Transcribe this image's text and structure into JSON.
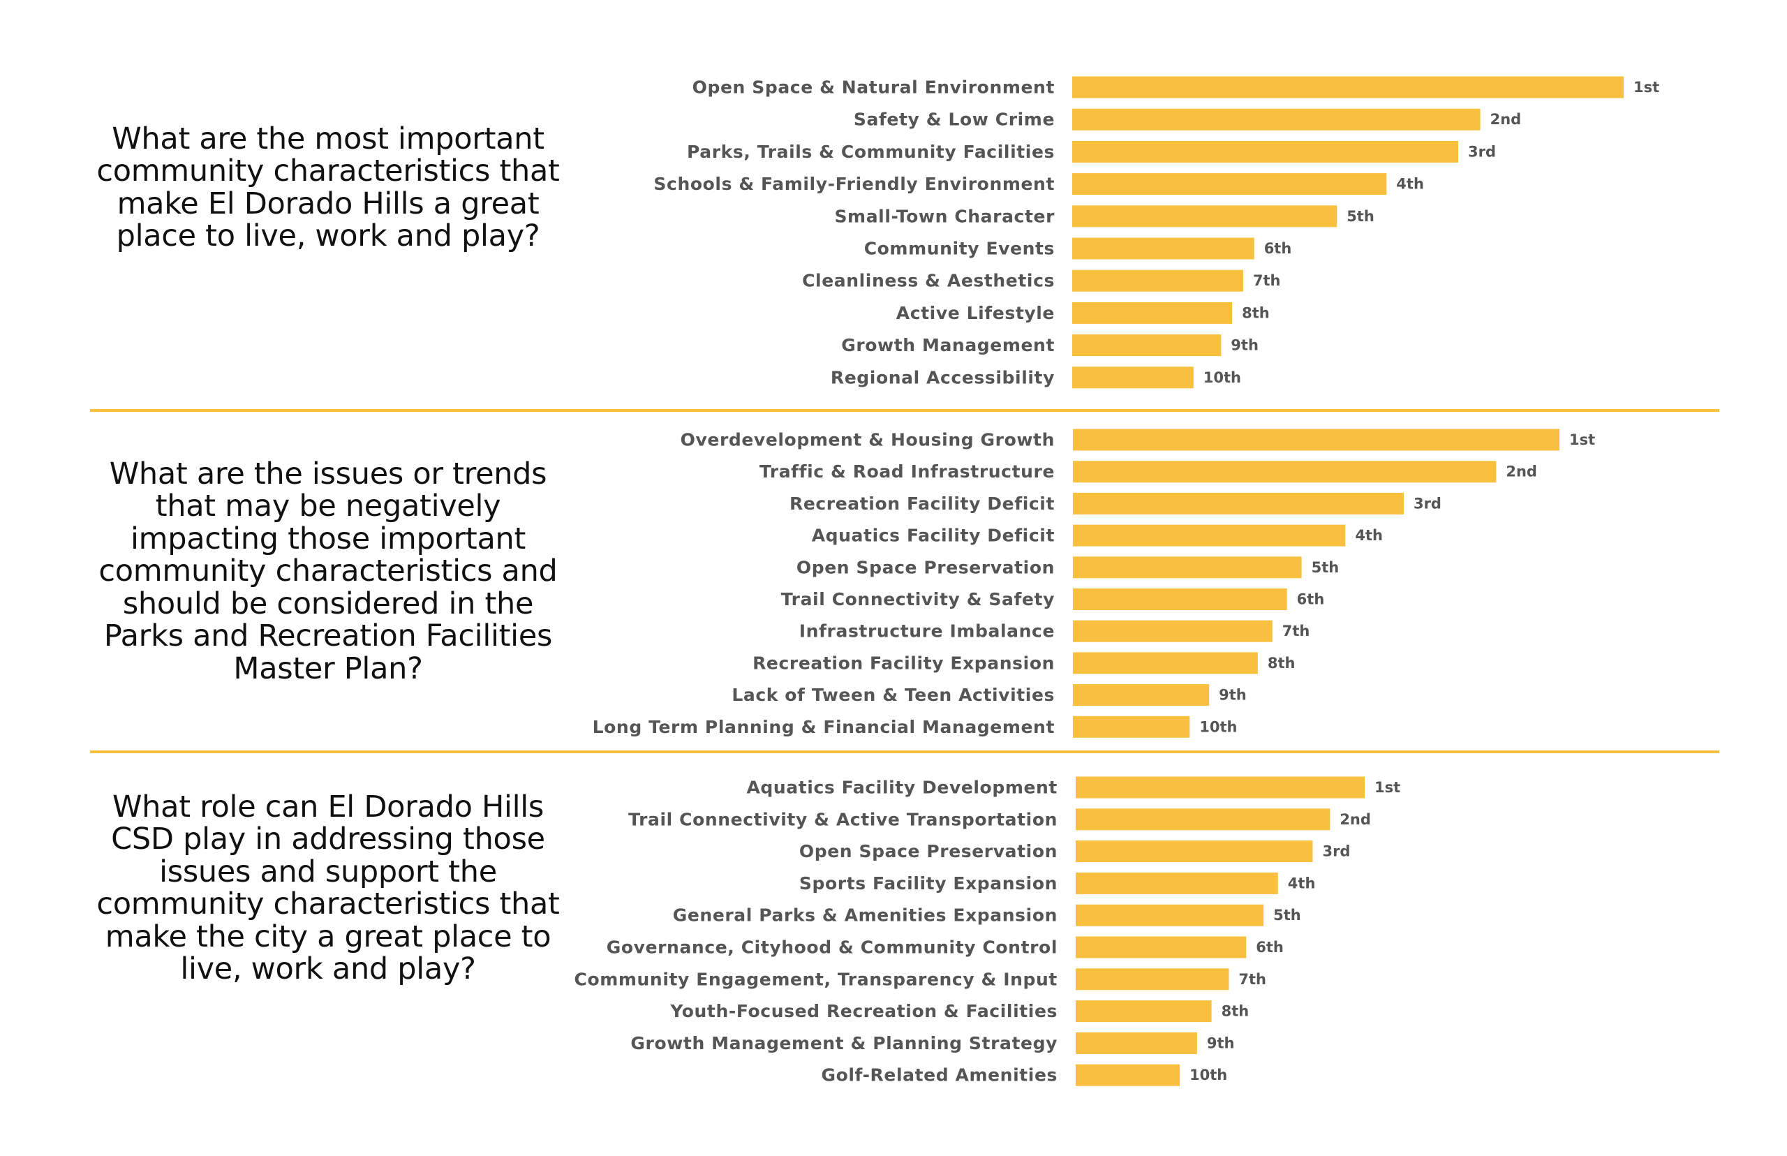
{
  "colors": {
    "bar": "#F8C03E",
    "divider": "#F8C03E",
    "category_text": "#555555",
    "rank_text": "#555555",
    "question_text": "#111111"
  },
  "chart_data": [
    {
      "type": "bar",
      "orientation": "horizontal",
      "question": "What are the most important community characteristics that make El Dorado Hills a great place to live, work and play?",
      "categories": [
        "Open Space & Natural Environment",
        "Safety & Low Crime",
        "Parks, Trails & Community Facilities",
        "Schools & Family-Friendly Environment",
        "Small-Town Character",
        "Community Events",
        "Cleanliness & Aesthetics",
        "Active Lifestyle",
        "Growth Management",
        "Regional Accessibility"
      ],
      "values": [
        100,
        74,
        70,
        57,
        48,
        33,
        31,
        29,
        27,
        22
      ],
      "data_labels": [
        "1st",
        "2nd",
        "3rd",
        "4th",
        "5th",
        "6th",
        "7th",
        "8th",
        "9th",
        "10th"
      ],
      "axis_visible": false,
      "grid": false
    },
    {
      "type": "bar",
      "orientation": "horizontal",
      "question": "What are the issues or trends that may be negatively impacting those important community characteristics and should be considered in the Parks and Recreation Facilities Master Plan?",
      "categories": [
        "Overdevelopment & Housing Growth",
        "Traffic & Road Infrastructure",
        "Recreation Facility Deficit",
        "Aquatics Facility Deficit",
        "Open Space Preservation",
        "Trail Connectivity & Safety",
        "Infrastructure Imbalance",
        "Recreation Facility Expansion",
        "Lack of Tween & Teen Activities",
        "Long Term Planning & Financial Management"
      ],
      "values": [
        100,
        87,
        68,
        56,
        47,
        44,
        41,
        38,
        28,
        24
      ],
      "data_labels": [
        "1st",
        "2nd",
        "3rd",
        "4th",
        "5th",
        "6th",
        "7th",
        "8th",
        "9th",
        "10th"
      ],
      "axis_visible": false,
      "grid": false
    },
    {
      "type": "bar",
      "orientation": "horizontal",
      "question": "What role can El Dorado Hills CSD play in addressing those issues and support the community characteristics that make the city a great place to live, work and play?",
      "categories": [
        "Aquatics Facility Development",
        "Trail Connectivity & Active Transportation",
        "Open Space Preservation",
        "Sports Facility Expansion",
        "General Parks & Amenities Expansion",
        "Governance, Cityhood & Community Control",
        "Community Engagement, Transparency & Input",
        "Youth-Focused Recreation & Facilities",
        "Growth Management & Planning Strategy",
        "Golf-Related Amenities"
      ],
      "values": [
        100,
        88,
        82,
        70,
        65,
        59,
        53,
        47,
        42,
        36
      ],
      "data_labels": [
        "1st",
        "2nd",
        "3rd",
        "4th",
        "5th",
        "6th",
        "7th",
        "8th",
        "9th",
        "10th"
      ],
      "axis_visible": false,
      "grid": false
    }
  ]
}
